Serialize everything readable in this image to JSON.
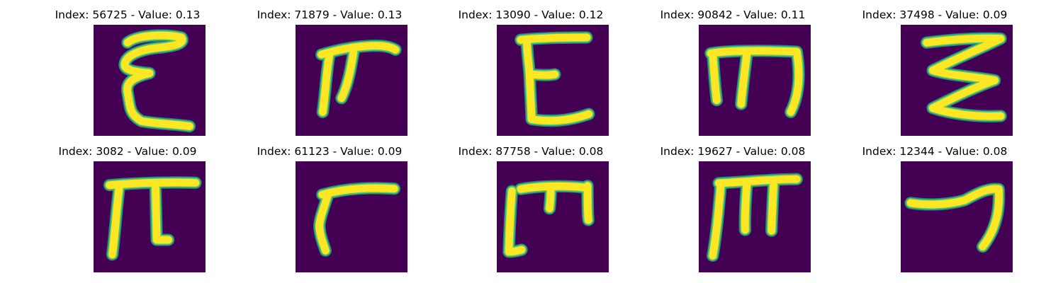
{
  "chart_data": {
    "type": "image_grid",
    "rows": 2,
    "cols": 5,
    "background_color": "#440154",
    "stroke_color": "#fde725",
    "edge_colors": [
      "#5ec962",
      "#21918c"
    ],
    "panels": [
      {
        "index": 56725,
        "value": "0.13",
        "title": "Index: 56725 - Value: 0.13",
        "glyph": "epsilon"
      },
      {
        "index": 71879,
        "value": "0.13",
        "title": "Index: 71879 - Value: 0.13",
        "glyph": "pi-slanted"
      },
      {
        "index": 13090,
        "value": "0.12",
        "title": "Index: 13090 - Value: 0.12",
        "glyph": "E"
      },
      {
        "index": 90842,
        "value": "0.11",
        "title": "Index: 90842 - Value: 0.11",
        "glyph": "m-sans"
      },
      {
        "index": 37498,
        "value": "0.09",
        "title": "Index: 37498 - Value: 0.09",
        "glyph": "zigzag"
      },
      {
        "index": 3082,
        "value": "0.09",
        "title": "Index: 3082 - Value: 0.09",
        "glyph": "pi"
      },
      {
        "index": 61123,
        "value": "0.09",
        "title": "Index: 61123 - Value: 0.09",
        "glyph": "gamma"
      },
      {
        "index": 87758,
        "value": "0.08",
        "title": "Index: 87758 - Value: 0.08",
        "glyph": "m-bracket"
      },
      {
        "index": 19627,
        "value": "0.08",
        "title": "Index: 19627 - Value: 0.08",
        "glyph": "m-bold"
      },
      {
        "index": 12344,
        "value": "0.08",
        "title": "Index: 12344 - Value: 0.08",
        "glyph": "seven"
      }
    ]
  }
}
